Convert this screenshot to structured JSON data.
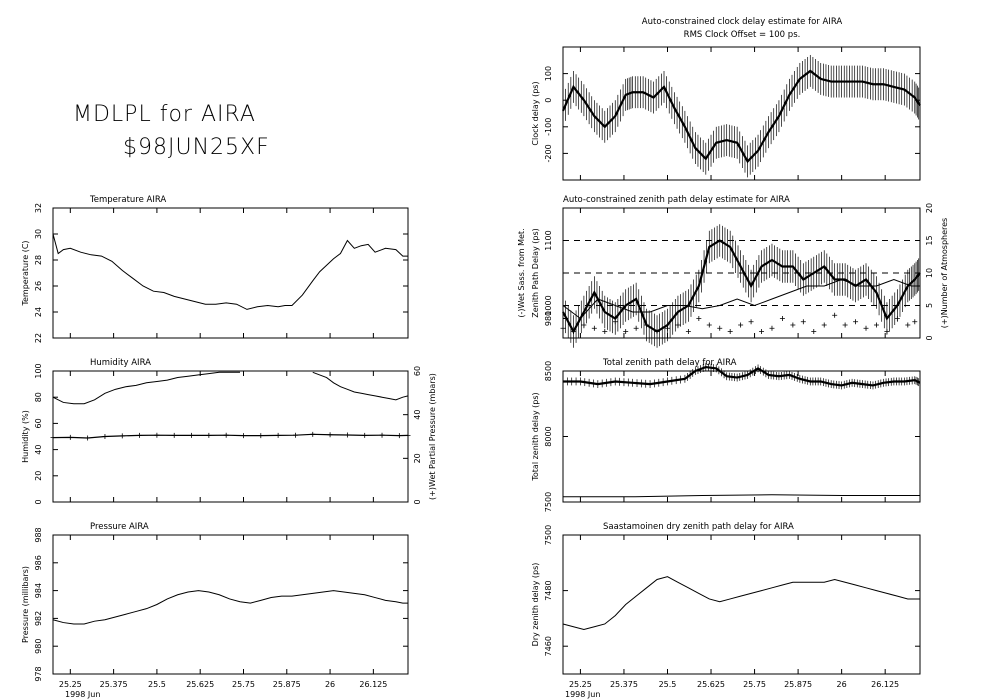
{
  "header": {
    "line1": "MDLPL for AIRA",
    "line2": "$98JUN25XF"
  },
  "shared_x": {
    "ticks": [
      25.25,
      25.375,
      25.5,
      25.625,
      25.75,
      25.875,
      26,
      26.125
    ],
    "tick_labels": [
      "25.25",
      "25.375",
      "25.5",
      "25.625",
      "25.75",
      "25.875",
      "26",
      "26.125"
    ],
    "range": [
      25.2,
      26.225
    ],
    "date_label": "1998 Jun"
  },
  "chart_data": [
    {
      "id": "temperature",
      "type": "line",
      "title": "Temperature   AIRA",
      "ylabel": "Temperature (C)",
      "ylim": [
        22,
        32
      ],
      "yticks": [
        22,
        24,
        26,
        28,
        30,
        32
      ],
      "series": [
        {
          "x": [
            25.2,
            25.215,
            25.23,
            25.25,
            25.28,
            25.31,
            25.34,
            25.37,
            25.4,
            25.43,
            25.46,
            25.49,
            25.52,
            25.55,
            25.58,
            25.61,
            25.64,
            25.67,
            25.7,
            25.73,
            25.76,
            25.79,
            25.82,
            25.85,
            25.87,
            25.89,
            25.92,
            25.95,
            25.97,
            25.99,
            26.01,
            26.03,
            26.05,
            26.07,
            26.09,
            26.11,
            26.13,
            26.16,
            26.19,
            26.21,
            26.225
          ],
          "y": [
            30.0,
            28.5,
            28.8,
            28.9,
            28.6,
            28.4,
            28.3,
            27.9,
            27.2,
            26.6,
            26.0,
            25.6,
            25.5,
            25.2,
            25.0,
            24.8,
            24.6,
            24.6,
            24.7,
            24.6,
            24.2,
            24.4,
            24.5,
            24.4,
            24.5,
            24.5,
            25.3,
            26.4,
            27.1,
            27.6,
            28.1,
            28.5,
            29.5,
            28.9,
            29.1,
            29.2,
            28.6,
            28.9,
            28.8,
            28.3,
            28.3
          ]
        }
      ]
    },
    {
      "id": "humidity",
      "type": "line",
      "title": "Humidity      AIRA",
      "ylabel": "Humidity (%)",
      "ylabel_right": "(+)Wet Partial Pressure (mbars)",
      "ylim": [
        0,
        100
      ],
      "yticks": [
        0,
        20,
        40,
        60,
        80,
        100
      ],
      "ylim_right": [
        0,
        60
      ],
      "yticks_right": [
        0,
        20,
        40,
        60
      ],
      "series": [
        {
          "x": [
            25.2,
            25.23,
            25.26,
            25.29,
            25.32,
            25.35,
            25.38,
            25.41,
            25.44,
            25.47,
            25.5,
            25.53,
            25.56,
            25.59,
            25.62,
            25.65,
            25.68,
            25.71,
            25.74
          ],
          "y": [
            80,
            76,
            75,
            75,
            78,
            83,
            86,
            88,
            89,
            91,
            92,
            93,
            95,
            96,
            97,
            98,
            99,
            99,
            99
          ]
        },
        {
          "x": [
            25.95,
            25.97,
            25.99,
            26.01,
            26.03,
            26.05,
            26.07,
            26.09,
            26.11,
            26.13,
            26.15,
            26.17,
            26.19,
            26.21,
            26.225
          ],
          "y": [
            99,
            97,
            95,
            91,
            88,
            86,
            84,
            83,
            82,
            81,
            80,
            79,
            78,
            80,
            81
          ]
        },
        {
          "x": [
            25.2,
            25.25,
            25.3,
            25.35,
            25.4,
            25.45,
            25.5,
            25.55,
            25.6,
            25.65,
            25.7,
            25.75,
            25.8,
            25.85,
            25.9,
            25.95,
            26.0,
            26.05,
            26.1,
            26.15,
            26.2,
            26.225
          ],
          "y": [
            29.5,
            29.6,
            29.3,
            30.0,
            30.3,
            30.5,
            30.6,
            30.5,
            30.5,
            30.5,
            30.6,
            30.4,
            30.4,
            30.5,
            30.6,
            31.0,
            30.8,
            30.7,
            30.5,
            30.6,
            30.4,
            30.5
          ],
          "axis": "right",
          "marker": "+"
        }
      ]
    },
    {
      "id": "pressure",
      "type": "line",
      "title": "Pressure        AIRA",
      "ylabel": "Pressure (millibars)",
      "ylim": [
        978,
        988
      ],
      "yticks": [
        978,
        980,
        982,
        984,
        986,
        988
      ],
      "series": [
        {
          "x": [
            25.2,
            25.23,
            25.26,
            25.29,
            25.32,
            25.35,
            25.38,
            25.41,
            25.44,
            25.47,
            25.5,
            25.53,
            25.56,
            25.59,
            25.62,
            25.65,
            25.68,
            25.71,
            25.74,
            25.77,
            25.8,
            25.83,
            25.86,
            25.89,
            25.92,
            25.95,
            25.98,
            26.01,
            26.04,
            26.07,
            26.1,
            26.13,
            26.16,
            26.19,
            26.21,
            26.225
          ],
          "y": [
            981.9,
            981.7,
            981.6,
            981.6,
            981.8,
            981.9,
            982.1,
            982.3,
            982.5,
            982.7,
            983.0,
            983.4,
            983.7,
            983.9,
            984.0,
            983.9,
            983.7,
            983.4,
            983.2,
            983.1,
            983.3,
            983.5,
            983.6,
            983.6,
            983.7,
            983.8,
            983.9,
            984.0,
            983.9,
            983.8,
            983.7,
            983.5,
            983.3,
            983.2,
            983.1,
            983.1
          ]
        }
      ]
    },
    {
      "id": "clock-delay",
      "type": "line",
      "title": "Auto-constrained clock delay estimate for AIRA",
      "subtitle": "RMS Clock Offset = 100 ps.",
      "ylabel": "Clock delay (ps)",
      "ylim": [
        -300,
        200
      ],
      "yticks": [
        -200,
        -100,
        0,
        100
      ],
      "series": [
        {
          "x": [
            25.2,
            25.23,
            25.26,
            25.29,
            25.32,
            25.35,
            25.38,
            25.4,
            25.43,
            25.46,
            25.49,
            25.52,
            25.55,
            25.58,
            25.61,
            25.64,
            25.67,
            25.7,
            25.73,
            25.76,
            25.79,
            25.82,
            25.85,
            25.88,
            25.91,
            25.94,
            25.97,
            26.0,
            26.03,
            26.06,
            26.09,
            26.12,
            26.15,
            26.18,
            26.21,
            26.225
          ],
          "y": [
            -40,
            50,
            0,
            -60,
            -100,
            -60,
            20,
            30,
            30,
            10,
            50,
            -30,
            -100,
            -180,
            -220,
            -160,
            -150,
            -160,
            -230,
            -190,
            -120,
            -60,
            20,
            80,
            110,
            80,
            70,
            70,
            70,
            70,
            60,
            60,
            50,
            40,
            10,
            -20
          ],
          "error": 60
        }
      ]
    },
    {
      "id": "zenith-path-delay",
      "type": "line",
      "title": "Auto-constrained zenith path delay estimate for AIRA",
      "ylabel": "Zenith Path Delay (ps)",
      "ylabel_outer": "(-)Wet Sass. from Met.",
      "ylabel_right": "(+)Number of Atmospheres",
      "ylim": [
        950,
        1150
      ],
      "yticks": [
        980,
        1000,
        1100
      ],
      "ylim_right": [
        0,
        20
      ],
      "yticks_right": [
        0,
        5,
        10,
        15,
        20
      ],
      "hlines": [
        1100,
        1000,
        1050
      ],
      "series": [
        {
          "x": [
            25.2,
            25.23,
            25.26,
            25.29,
            25.32,
            25.35,
            25.38,
            25.41,
            25.44,
            25.47,
            25.5,
            25.53,
            25.56,
            25.59,
            25.62,
            25.65,
            25.68,
            25.71,
            25.74,
            25.77,
            25.8,
            25.83,
            25.86,
            25.89,
            25.92,
            25.95,
            25.98,
            26.01,
            26.04,
            26.07,
            26.1,
            26.13,
            26.16,
            26.19,
            26.21,
            26.225
          ],
          "y": [
            990,
            960,
            990,
            1020,
            990,
            980,
            1000,
            1010,
            970,
            960,
            970,
            990,
            1000,
            1030,
            1090,
            1100,
            1090,
            1060,
            1030,
            1060,
            1070,
            1060,
            1060,
            1040,
            1050,
            1060,
            1040,
            1040,
            1030,
            1040,
            1020,
            980,
            1000,
            1030,
            1040,
            1050
          ],
          "error": 25
        },
        {
          "x": [
            25.2,
            25.25,
            25.3,
            25.35,
            25.4,
            25.45,
            25.5,
            25.55,
            25.6,
            25.65,
            25.7,
            25.75,
            25.8,
            25.85,
            25.9,
            25.95,
            26.0,
            26.05,
            26.1,
            26.15,
            26.2,
            26.225
          ],
          "y": [
            1000,
            980,
            1010,
            1000,
            990,
            990,
            1000,
            1000,
            995,
            1000,
            1010,
            1000,
            1010,
            1020,
            1030,
            1030,
            1040,
            1030,
            1030,
            1040,
            1030,
            1030
          ]
        },
        {
          "x": [
            25.2,
            25.23,
            25.26,
            25.29,
            25.32,
            25.35,
            25.38,
            25.41,
            25.44,
            25.47,
            25.5,
            25.53,
            25.56,
            25.59,
            25.62,
            25.65,
            25.68,
            25.71,
            25.74,
            25.77,
            25.8,
            25.83,
            25.86,
            25.89,
            25.92,
            25.95,
            25.98,
            26.01,
            26.04,
            26.07,
            26.1,
            26.13,
            26.16,
            26.19,
            26.21
          ],
          "y": [
            1.5,
            1.0,
            2.0,
            1.5,
            1.0,
            2.5,
            1.0,
            1.5,
            2.0,
            1.0,
            1.5,
            2.0,
            1.0,
            3.0,
            2.0,
            1.5,
            1.0,
            2.0,
            2.5,
            1.0,
            1.5,
            3.0,
            2.0,
            2.5,
            1.0,
            2.0,
            3.5,
            2.0,
            2.5,
            1.5,
            2.0,
            1.0,
            3.0,
            2.0,
            2.5
          ],
          "axis": "right",
          "marker": "+"
        }
      ]
    },
    {
      "id": "total-zenith-delay",
      "type": "line",
      "title": "Total zenith path delay for AIRA",
      "ylabel": "Total zenith delay (ps)",
      "ylim": [
        7500,
        8500
      ],
      "yticks": [
        7500,
        8000,
        8500
      ],
      "series": [
        {
          "x": [
            25.2,
            25.25,
            25.3,
            25.35,
            25.4,
            25.45,
            25.5,
            25.55,
            25.58,
            25.61,
            25.64,
            25.67,
            25.7,
            25.73,
            25.76,
            25.79,
            25.82,
            25.85,
            25.88,
            25.91,
            25.94,
            25.97,
            26.0,
            26.03,
            26.06,
            26.09,
            26.12,
            26.15,
            26.18,
            26.21,
            26.225
          ],
          "y": [
            8420,
            8420,
            8400,
            8420,
            8410,
            8400,
            8420,
            8440,
            8500,
            8530,
            8520,
            8460,
            8450,
            8470,
            8520,
            8470,
            8460,
            8470,
            8440,
            8420,
            8420,
            8400,
            8390,
            8410,
            8400,
            8390,
            8410,
            8420,
            8420,
            8430,
            8410
          ],
          "error": 30
        },
        {
          "x": [
            25.2,
            25.4,
            25.6,
            25.8,
            26.0,
            26.225
          ],
          "y": [
            7540,
            7540,
            7550,
            7555,
            7550,
            7550
          ]
        }
      ]
    },
    {
      "id": "dry-zenith-delay",
      "type": "line",
      "title": "Saastamoinen dry zenith path delay for AIRA",
      "ylabel": "Dry zenith delay (ps)",
      "ylim": [
        7450,
        7500
      ],
      "yticks": [
        7460,
        7480,
        7500
      ],
      "series": [
        {
          "x": [
            25.2,
            25.23,
            25.26,
            25.29,
            25.32,
            25.35,
            25.38,
            25.41,
            25.44,
            25.47,
            25.5,
            25.53,
            25.56,
            25.59,
            25.62,
            25.65,
            25.68,
            25.71,
            25.74,
            25.77,
            25.8,
            25.83,
            25.86,
            25.89,
            25.92,
            25.95,
            25.98,
            26.01,
            26.04,
            26.07,
            26.1,
            26.13,
            26.16,
            26.19,
            26.21,
            26.225
          ],
          "y": [
            7468,
            7467,
            7466,
            7467,
            7468,
            7471,
            7475,
            7478,
            7481,
            7484,
            7485,
            7483,
            7481,
            7479,
            7477,
            7476,
            7477,
            7478,
            7479,
            7480,
            7481,
            7482,
            7483,
            7483,
            7483,
            7483,
            7484,
            7483,
            7482,
            7481,
            7480,
            7479,
            7478,
            7477,
            7477,
            7477
          ]
        }
      ]
    }
  ]
}
